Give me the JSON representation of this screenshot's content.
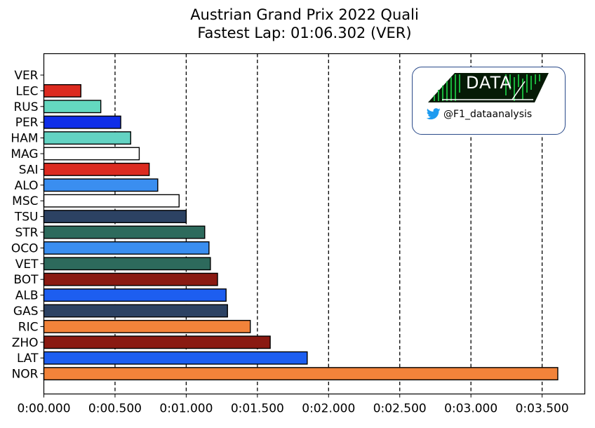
{
  "title": {
    "line1": "Austrian Grand Prix 2022 Quali",
    "line2": "Fastest Lap: 01:06.302 (VER)"
  },
  "logo": {
    "word": "DATA",
    "handle": "@F1_dataanalysis",
    "icon": "twitter-bird-icon",
    "colors": {
      "border": "#2a4a8a",
      "matrix": "#0a7a2a",
      "bird": "#1d9bf0"
    }
  },
  "chart_data": {
    "type": "bar",
    "orientation": "horizontal",
    "title": "Austrian Grand Prix 2022 Quali\nFastest Lap: 01:06.302 (VER)",
    "xlabel": "",
    "ylabel": "",
    "xlim": [
      0,
      3.8
    ],
    "xticks": [
      {
        "value": 0.0,
        "label": "0:00.000"
      },
      {
        "value": 0.5,
        "label": "0:00.500"
      },
      {
        "value": 1.0,
        "label": "0:01.000"
      },
      {
        "value": 1.5,
        "label": "0:01.500"
      },
      {
        "value": 2.0,
        "label": "0:02.000"
      },
      {
        "value": 2.5,
        "label": "0:02.500"
      },
      {
        "value": 3.0,
        "label": "0:03.000"
      },
      {
        "value": 3.5,
        "label": "0:03.500"
      }
    ],
    "grid": "vertical dashed",
    "categories": [
      "VER",
      "LEC",
      "RUS",
      "PER",
      "HAM",
      "MAG",
      "SAI",
      "ALO",
      "MSC",
      "TSU",
      "STR",
      "OCO",
      "VET",
      "BOT",
      "ALB",
      "GAS",
      "RIC",
      "ZHO",
      "LAT",
      "NOR"
    ],
    "values": [
      0.0,
      0.26,
      0.4,
      0.54,
      0.61,
      0.67,
      0.74,
      0.8,
      0.95,
      1.0,
      1.13,
      1.16,
      1.17,
      1.22,
      1.28,
      1.29,
      1.45,
      1.59,
      1.85,
      3.61
    ],
    "colors": [
      "#1e41ff",
      "#dc2b20",
      "#64d8c0",
      "#0f2ee8",
      "#63d3c3",
      "#ffffff",
      "#dc2b20",
      "#3a8ef0",
      "#ffffff",
      "#2c4263",
      "#2d6a5c",
      "#3a8ef0",
      "#2d6a5c",
      "#8a1a12",
      "#1d5ef0",
      "#2c4263",
      "#f2833a",
      "#8a1a12",
      "#1d5ef0",
      "#f2833a"
    ]
  }
}
